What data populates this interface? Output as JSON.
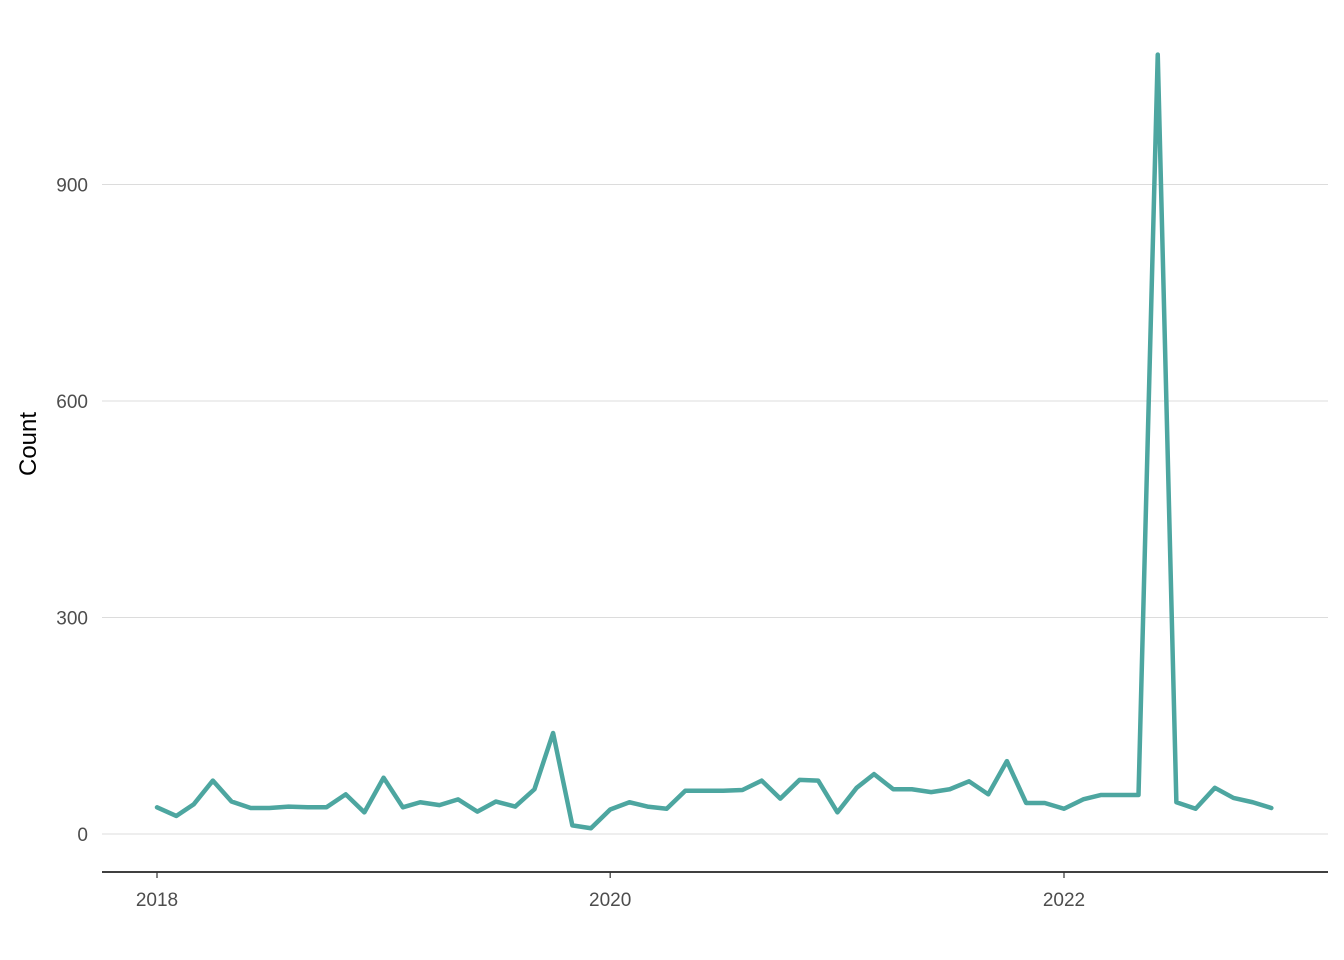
{
  "chart_data": {
    "type": "line",
    "title": "",
    "xlabel": "",
    "ylabel": "Count",
    "x_ticks": [
      "2018",
      "2020",
      "2022"
    ],
    "y_ticks": [
      0,
      300,
      600,
      900
    ],
    "ylim": [
      -50,
      1100
    ],
    "xlim": [
      "2017-10-01",
      "2023-03-01"
    ],
    "grid": "horizontal-major",
    "legend": "none",
    "colors": {
      "line": "#4da6a0",
      "grid": "#dcdcdc",
      "axis": "#000000"
    },
    "series": [
      {
        "x": [
          "2018-01-01",
          "2018-02-01",
          "2018-03-01",
          "2018-04-01",
          "2018-05-01",
          "2018-06-01",
          "2018-07-01",
          "2018-08-01",
          "2018-09-01",
          "2018-10-01",
          "2018-11-01",
          "2018-12-01",
          "2019-01-01",
          "2019-02-01",
          "2019-03-01",
          "2019-04-01",
          "2019-05-01",
          "2019-06-01",
          "2019-07-01",
          "2019-08-01",
          "2019-09-01",
          "2019-10-01",
          "2019-11-01",
          "2019-12-01",
          "2020-01-01",
          "2020-02-01",
          "2020-03-01",
          "2020-04-01",
          "2020-05-01",
          "2020-06-01",
          "2020-07-01",
          "2020-08-01",
          "2020-09-01",
          "2020-10-01",
          "2020-11-01",
          "2020-12-01",
          "2021-01-01",
          "2021-02-01",
          "2021-03-01",
          "2021-04-01",
          "2021-05-01",
          "2021-06-01",
          "2021-07-01",
          "2021-08-01",
          "2021-09-01",
          "2021-10-01",
          "2021-11-01",
          "2021-12-01",
          "2022-01-01",
          "2022-02-01",
          "2022-03-01",
          "2022-04-01",
          "2022-05-01",
          "2022-06-01",
          "2022-07-01",
          "2022-08-01",
          "2022-09-01",
          "2022-10-01",
          "2022-11-01",
          "2022-12-01"
        ],
        "values": [
          37,
          25,
          41,
          74,
          45,
          36,
          36,
          38,
          37,
          37,
          55,
          30,
          78,
          37,
          44,
          40,
          48,
          31,
          45,
          38,
          62,
          140,
          12,
          8,
          34,
          44,
          38,
          35,
          60,
          60,
          60,
          61,
          74,
          49,
          75,
          74,
          30,
          64,
          83,
          62,
          62,
          58,
          62,
          73,
          55,
          101,
          43,
          43,
          35,
          48,
          54,
          54,
          54,
          1080,
          44,
          35,
          64,
          50,
          44,
          36
        ]
      }
    ]
  }
}
